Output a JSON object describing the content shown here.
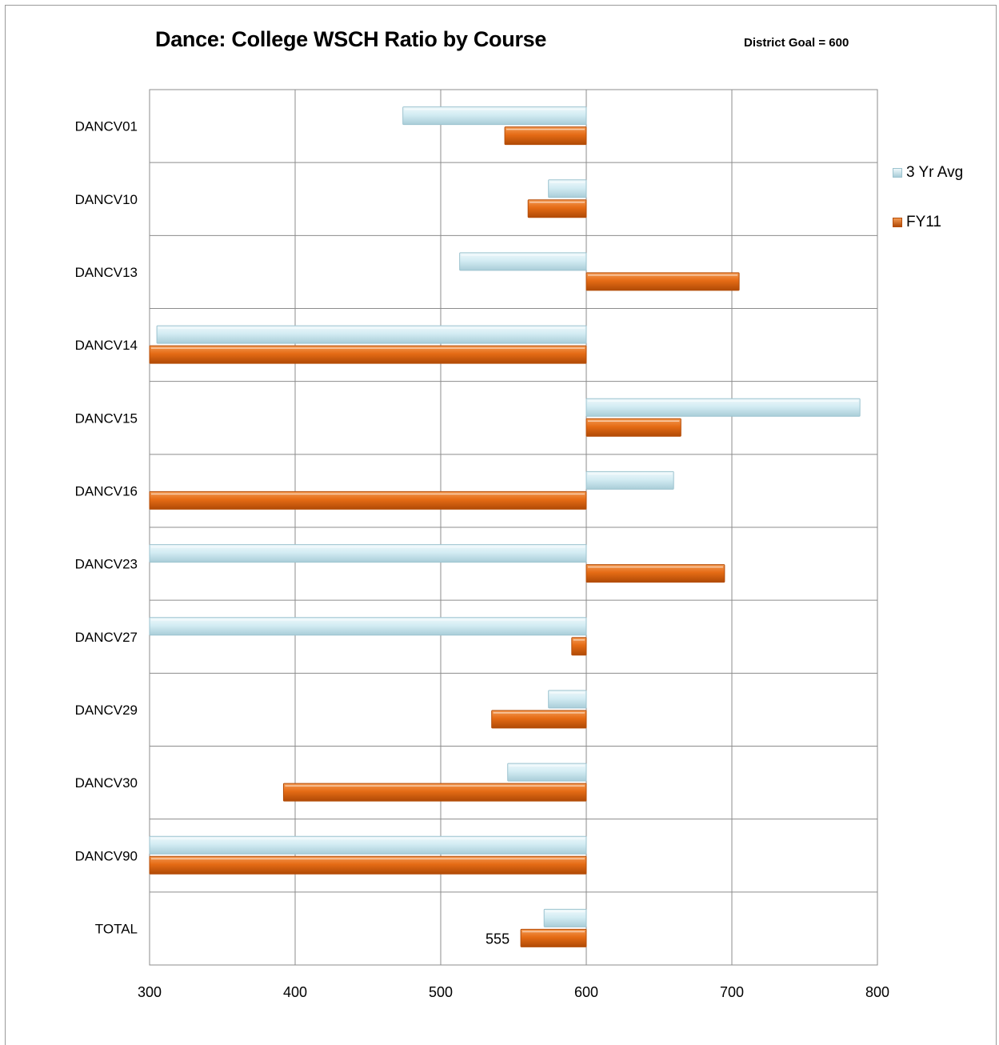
{
  "title": "Dance: College WSCH Ratio by Course",
  "goal_note": "District Goal = 600",
  "colors": {
    "avg": "#cfe9f1",
    "avg_edge": "#9cc3cf",
    "fy": "#e56b15",
    "fy_edge": "#b54d08",
    "grid": "#8c8c8c"
  },
  "legend": [
    {
      "label": "3 Yr Avg",
      "color": "#cfe9f1"
    },
    {
      "label": "FY11",
      "color": "#e56b15"
    }
  ],
  "chart_data": {
    "type": "bar",
    "orientation": "horizontal",
    "title": "Dance: College WSCH Ratio by Course",
    "baseline": 600,
    "xlim": [
      300,
      800
    ],
    "x_ticks": [
      "300",
      "400",
      "500",
      "600",
      "700",
      "800"
    ],
    "categories": [
      "DANCV01",
      "DANCV10",
      "DANCV13",
      "DANCV14",
      "DANCV15",
      "DANCV16",
      "DANCV23",
      "DANCV27",
      "DANCV29",
      "DANCV30",
      "DANCV90",
      "TOTAL"
    ],
    "series": [
      {
        "name": "3 Yr Avg",
        "values": [
          474,
          574,
          513,
          305,
          788,
          660,
          300,
          300,
          574,
          546,
          300,
          571
        ]
      },
      {
        "name": "FY11",
        "values": [
          544,
          560,
          705,
          300,
          665,
          300,
          695,
          590,
          535,
          392,
          300,
          555
        ]
      }
    ],
    "data_labels": [
      {
        "category": "TOTAL",
        "series": "FY11",
        "text": "555"
      }
    ],
    "grid": true,
    "legend_position": "right"
  }
}
